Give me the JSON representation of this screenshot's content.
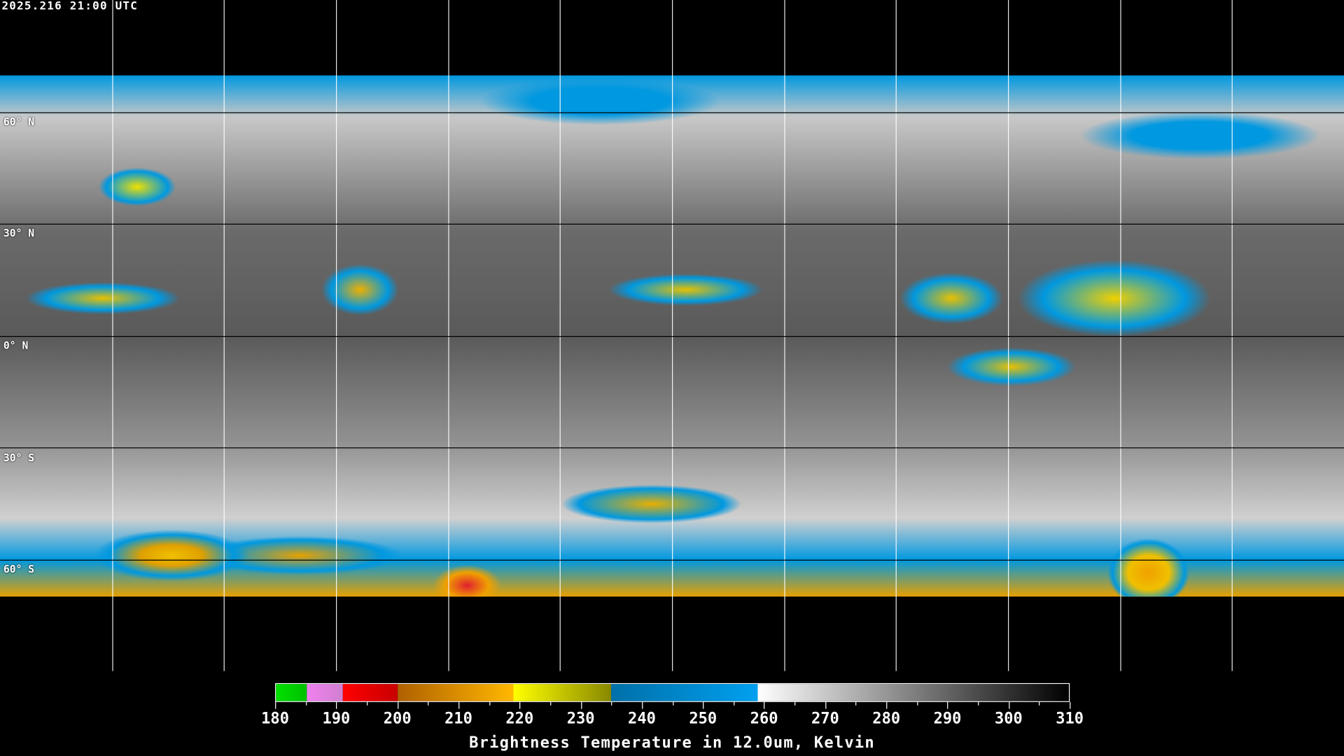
{
  "timestamp": "2025.216 21:00 UTC",
  "latitude_labels": [
    "60° N",
    "30° N",
    "0° N",
    "30° S",
    "60° S"
  ],
  "colorbar": {
    "title": "Brightness Temperature in 12.0um, Kelvin",
    "ticks": [
      "180",
      "190",
      "200",
      "210",
      "220",
      "230",
      "240",
      "250",
      "260",
      "270",
      "280",
      "290",
      "300",
      "310"
    ],
    "range": [
      180,
      310
    ],
    "segments": [
      {
        "from": 180,
        "to": 185,
        "colors": [
          "#00e000",
          "#00c000"
        ]
      },
      {
        "from": 185,
        "to": 191,
        "colors": [
          "#f080f0",
          "#d080d0"
        ]
      },
      {
        "from": 191,
        "to": 200,
        "colors": [
          "#ff0000",
          "#c80000"
        ]
      },
      {
        "from": 200,
        "to": 219,
        "colors": [
          "#b06000",
          "#ffb800"
        ]
      },
      {
        "from": 219,
        "to": 235,
        "colors": [
          "#ffff00",
          "#888800"
        ]
      },
      {
        "from": 235,
        "to": 259,
        "colors": [
          "#0070a8",
          "#00a0f0"
        ]
      },
      {
        "from": 259,
        "to": 310,
        "colors": [
          "#ffffff",
          "#000000"
        ]
      }
    ]
  }
}
